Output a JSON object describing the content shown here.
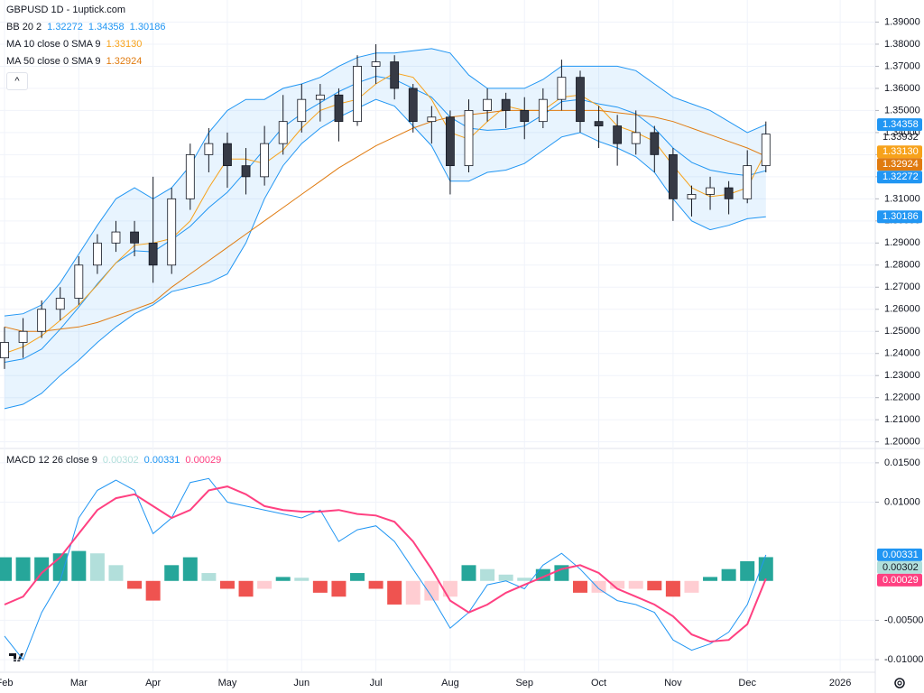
{
  "header": {
    "title": "GBPUSD 1D - 1uptick.com"
  },
  "chart_data": [
    {
      "type": "candlestick",
      "categories": [
        "Feb",
        null,
        null,
        null,
        "Mar",
        null,
        null,
        null,
        "Apr",
        null,
        null,
        null,
        "May",
        null,
        null,
        null,
        "Jun",
        null,
        null,
        null,
        "Jul",
        null,
        null,
        null,
        "Aug",
        null,
        null,
        null,
        "Sep",
        null,
        null,
        null,
        "Oct",
        null,
        null,
        null,
        "Nov",
        null,
        null,
        null,
        "Dec",
        null,
        null,
        null,
        null,
        "2026"
      ],
      "open": [
        1.238,
        1.245,
        1.25,
        1.26,
        1.265,
        1.28,
        1.29,
        1.295,
        1.29,
        1.28,
        1.31,
        1.33,
        1.335,
        1.325,
        1.32,
        1.335,
        1.345,
        1.355,
        1.357,
        1.345,
        1.37,
        1.372,
        1.36,
        1.345,
        1.347,
        1.325,
        1.35,
        1.355,
        1.35,
        1.345,
        1.355,
        1.365,
        1.345,
        1.343,
        1.335,
        1.34,
        1.33,
        1.31,
        1.312,
        1.315,
        1.31,
        1.325,
        null,
        null,
        null,
        null
      ],
      "high": [
        1.252,
        1.256,
        1.264,
        1.27,
        1.284,
        1.294,
        1.3,
        1.3,
        1.32,
        1.315,
        1.335,
        1.342,
        1.34,
        1.333,
        1.343,
        1.357,
        1.362,
        1.362,
        1.36,
        1.375,
        1.38,
        1.375,
        1.362,
        1.352,
        1.35,
        1.355,
        1.36,
        1.358,
        1.356,
        1.36,
        1.373,
        1.368,
        1.352,
        1.348,
        1.35,
        1.343,
        1.333,
        1.316,
        1.32,
        1.318,
        1.332,
        1.345,
        null,
        null,
        null,
        null
      ],
      "low": [
        1.233,
        1.238,
        1.247,
        1.255,
        1.262,
        1.276,
        1.286,
        1.284,
        1.272,
        1.276,
        1.305,
        1.322,
        1.315,
        1.312,
        1.316,
        1.33,
        1.34,
        1.345,
        1.336,
        1.343,
        1.362,
        1.355,
        1.34,
        1.335,
        1.312,
        1.322,
        1.345,
        1.342,
        1.337,
        1.342,
        1.35,
        1.34,
        1.333,
        1.325,
        1.33,
        1.322,
        1.3,
        1.302,
        1.305,
        1.303,
        1.308,
        1.322,
        null,
        null,
        null,
        null
      ],
      "close": [
        1.245,
        1.25,
        1.26,
        1.265,
        1.28,
        1.29,
        1.295,
        1.29,
        1.28,
        1.31,
        1.33,
        1.335,
        1.325,
        1.32,
        1.335,
        1.345,
        1.355,
        1.357,
        1.345,
        1.37,
        1.372,
        1.36,
        1.345,
        1.347,
        1.325,
        1.35,
        1.355,
        1.35,
        1.345,
        1.355,
        1.365,
        1.345,
        1.343,
        1.335,
        1.34,
        1.33,
        1.31,
        1.312,
        1.315,
        1.31,
        1.325,
        1.33932,
        null,
        null,
        null,
        null
      ],
      "last_price_label": "1.33932",
      "up_color": "#ffffff",
      "down_color": "#363a45",
      "wick_color": "#131722",
      "indicators": [
        {
          "name": "BB 20 2",
          "color": "#2196f3",
          "fill": "rgba(33,150,243,0.1)",
          "lines": [
            {
              "value_label": "1.32272",
              "values": [
                1.236,
                1.2375,
                1.242,
                1.251,
                1.261,
                1.2715,
                1.281,
                1.2865,
                1.286,
                1.2915,
                1.2975,
                1.306,
                1.313,
                1.3225,
                1.3325,
                1.3425,
                1.3485,
                1.3535,
                1.3585,
                1.3625,
                1.3655,
                1.364,
                1.36,
                1.356,
                1.347,
                1.342,
                1.341,
                1.3415,
                1.343,
                1.348,
                1.354,
                1.355,
                1.353,
                1.3515,
                1.3485,
                1.342,
                1.333,
                1.3265,
                1.323,
                1.3215,
                1.3205,
                1.32272,
                null,
                null,
                null,
                null
              ]
            },
            {
              "value_label": "1.34358",
              "values": [
                1.257,
                1.258,
                1.262,
                1.272,
                1.285,
                1.298,
                1.31,
                1.315,
                1.31,
                1.315,
                1.325,
                1.34,
                1.35,
                1.355,
                1.355,
                1.36,
                1.362,
                1.365,
                1.37,
                1.374,
                1.376,
                1.376,
                1.377,
                1.378,
                1.376,
                1.366,
                1.36,
                1.36,
                1.36,
                1.364,
                1.37,
                1.37,
                1.37,
                1.37,
                1.368,
                1.362,
                1.356,
                1.353,
                1.35,
                1.345,
                1.34,
                1.34358,
                null,
                null,
                null,
                null
              ]
            },
            {
              "value_label": "1.30186",
              "values": [
                1.215,
                1.217,
                1.222,
                1.23,
                1.237,
                1.245,
                1.252,
                1.258,
                1.262,
                1.268,
                1.27,
                1.272,
                1.276,
                1.29,
                1.31,
                1.325,
                1.335,
                1.342,
                1.347,
                1.351,
                1.355,
                1.352,
                1.343,
                1.334,
                1.318,
                1.318,
                1.322,
                1.323,
                1.326,
                1.332,
                1.338,
                1.34,
                1.336,
                1.333,
                1.329,
                1.322,
                1.31,
                1.3,
                1.296,
                1.298,
                1.301,
                1.30186,
                null,
                null,
                null,
                null
              ]
            }
          ]
        },
        {
          "name": "MA 10 close 0 SMA 9",
          "color": "#f7a21b",
          "lines": [
            {
              "value_label": "1.33130",
              "values": [
                1.24,
                1.243,
                1.248,
                1.255,
                1.262,
                1.271,
                1.281,
                1.289,
                1.29,
                1.292,
                1.3,
                1.315,
                1.328,
                1.328,
                1.326,
                1.332,
                1.342,
                1.35,
                1.353,
                1.355,
                1.362,
                1.367,
                1.365,
                1.355,
                1.34,
                1.337,
                1.345,
                1.352,
                1.35,
                1.35,
                1.356,
                1.357,
                1.352,
                1.343,
                1.34,
                1.336,
                1.325,
                1.315,
                1.311,
                1.312,
                1.315,
                1.3313,
                null,
                null,
                null,
                null
              ]
            }
          ]
        },
        {
          "name": "MA 50 close 0 SMA 9",
          "color": "#e07b10",
          "lines": [
            {
              "value_label": "1.32924",
              "values": [
                1.252,
                1.25,
                1.25,
                1.251,
                1.252,
                1.254,
                1.257,
                1.26,
                1.263,
                1.27,
                1.276,
                1.282,
                1.288,
                1.294,
                1.3,
                1.306,
                1.312,
                1.318,
                1.324,
                1.329,
                1.334,
                1.338,
                1.342,
                1.345,
                1.347,
                1.348,
                1.349,
                1.35,
                1.35,
                1.35,
                1.35,
                1.35,
                1.35,
                1.349,
                1.348,
                1.347,
                1.345,
                1.342,
                1.339,
                1.336,
                1.333,
                1.32924,
                null,
                null,
                null,
                null
              ]
            }
          ]
        }
      ],
      "ylim": [
        1.197,
        1.4
      ],
      "yticks": [
        {
          "value": 1.2,
          "label": "1.20000"
        },
        {
          "value": 1.21,
          "label": "1.21000"
        },
        {
          "value": 1.22,
          "label": "1.22000"
        },
        {
          "value": 1.23,
          "label": "1.23000"
        },
        {
          "value": 1.24,
          "label": "1.24000"
        },
        {
          "value": 1.25,
          "label": "1.25000"
        },
        {
          "value": 1.26,
          "label": "1.26000"
        },
        {
          "value": 1.27,
          "label": "1.27000"
        },
        {
          "value": 1.28,
          "label": "1.28000"
        },
        {
          "value": 1.29,
          "label": "1.29000"
        },
        {
          "value": 1.3,
          "label": "1.30000"
        },
        {
          "value": 1.31,
          "label": "1.31000"
        },
        {
          "value": 1.32,
          "label": "1.32000"
        },
        {
          "value": 1.33,
          "label": "1.33000"
        },
        {
          "value": 1.34,
          "label": "1.34000"
        },
        {
          "value": 1.35,
          "label": "1.35000"
        },
        {
          "value": 1.36,
          "label": "1.36000"
        },
        {
          "value": 1.37,
          "label": "1.37000"
        },
        {
          "value": 1.38,
          "label": "1.38000"
        },
        {
          "value": 1.39,
          "label": "1.39000"
        }
      ],
      "grid": true
    },
    {
      "type": "macd",
      "title": "MACD 12 26 close 9",
      "histogram": {
        "value_label": "0.00302",
        "colors": [
          "#26a69a",
          "#b2dfdb",
          "#ffcdd2",
          "#ef5350"
        ],
        "label_color": "#b2dfdb",
        "values": [
          0.003,
          0.003,
          0.003,
          0.0035,
          0.0038,
          0.0035,
          0.002,
          -0.001,
          -0.0025,
          0.002,
          0.003,
          0.001,
          -0.001,
          -0.002,
          -0.001,
          0.0005,
          0.0004,
          -0.0015,
          -0.002,
          0.001,
          -0.001,
          -0.003,
          -0.003,
          -0.0025,
          -0.002,
          0.002,
          0.0015,
          0.0008,
          0.0004,
          0.0015,
          0.002,
          -0.0015,
          -0.0015,
          -0.001,
          -0.001,
          -0.0012,
          -0.002,
          -0.0015,
          0.0005,
          0.0015,
          0.0025,
          0.00302,
          null,
          null,
          null,
          null
        ]
      },
      "macd": {
        "value_label": "0.00331",
        "color": "#2196f3",
        "values": [
          -0.007,
          -0.01,
          -0.004,
          0.0,
          0.008,
          0.0115,
          0.0128,
          0.0115,
          0.006,
          0.008,
          0.0125,
          0.013,
          0.01,
          0.0095,
          0.009,
          0.0085,
          0.008,
          0.009,
          0.005,
          0.0065,
          0.007,
          0.005,
          0.0015,
          -0.002,
          -0.006,
          -0.004,
          -0.0005,
          0.0,
          -0.001,
          0.002,
          0.0035,
          0.0015,
          -0.001,
          -0.0025,
          -0.003,
          -0.004,
          -0.0075,
          -0.0088,
          -0.008,
          -0.0065,
          -0.003,
          0.00331,
          null,
          null,
          null,
          null
        ]
      },
      "signal": {
        "value_label": "0.00029",
        "color": "#ff4081",
        "values": [
          -0.003,
          -0.002,
          0.001,
          0.003,
          0.006,
          0.009,
          0.0105,
          0.011,
          0.0095,
          0.008,
          0.009,
          0.0115,
          0.012,
          0.011,
          0.0095,
          0.009,
          0.0088,
          0.0088,
          0.009,
          0.0085,
          0.0083,
          0.0075,
          0.005,
          0.0015,
          -0.0025,
          -0.004,
          -0.003,
          -0.0015,
          -0.0005,
          0.0005,
          0.0015,
          0.002,
          0.001,
          -0.001,
          -0.002,
          -0.003,
          -0.0045,
          -0.0068,
          -0.0077,
          -0.0075,
          -0.0055,
          0.00029,
          null,
          null,
          null,
          null
        ]
      },
      "ylim": [
        -0.0116,
        0.01682
      ],
      "yticks": [
        {
          "value": 0.015,
          "label": "0.01500"
        },
        {
          "value": 0.01,
          "label": "0.01000"
        },
        {
          "value": -0.005,
          "label": "-0.00500"
        },
        {
          "value": -0.01,
          "label": "-0.01000"
        }
      ],
      "grid": true
    }
  ]
}
